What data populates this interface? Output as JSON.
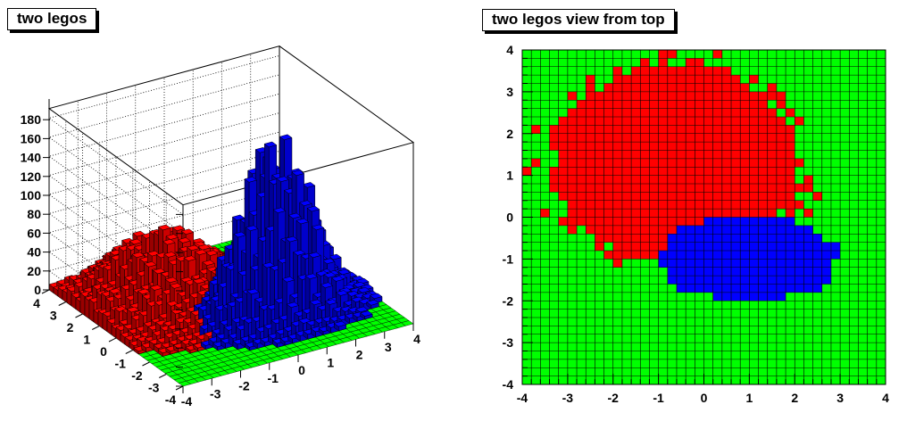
{
  "pads": [
    {
      "title": "two legos"
    },
    {
      "title": "two legos view from top"
    }
  ],
  "chart_data": [
    {
      "type": "bar",
      "subtype": "lego3d",
      "title": "two legos",
      "z_ticks": [
        "0",
        "20",
        "40",
        "60",
        "80",
        "100",
        "120",
        "140",
        "160",
        "180"
      ],
      "x_ticks": [
        "-4",
        "-3",
        "-2",
        "-1",
        "0",
        "1",
        "2",
        "3",
        "4"
      ],
      "y_ticks": [
        "-4",
        "-3",
        "-2",
        "-1",
        "0",
        "1",
        "2",
        "3",
        "4"
      ],
      "xlim": [
        -4,
        4
      ],
      "ylim": [
        -4,
        4
      ],
      "zlim": [
        0,
        190
      ],
      "series": [
        {
          "color": "#ff0000",
          "center": [
            -1.5,
            1.5
          ],
          "sigma": [
            1.5,
            1.5
          ],
          "peak": 60
        },
        {
          "color": "#0000ff",
          "center": [
            1.0,
            -1.0
          ],
          "sigma": [
            1.2,
            0.8
          ],
          "peak": 150
        }
      ],
      "empty_color": "#00ff00",
      "grid": true
    },
    {
      "type": "heatmap",
      "title": "two legos view from top",
      "x_ticks": [
        "-4",
        "-3",
        "-2",
        "-1",
        "0",
        "1",
        "2",
        "3",
        "4"
      ],
      "y_ticks": [
        "-4",
        "-3",
        "-2",
        "-1",
        "0",
        "1",
        "2",
        "3",
        "4"
      ],
      "xlim": [
        -4,
        4
      ],
      "ylim": [
        -4,
        4
      ],
      "nbins": 40,
      "colors": {
        "empty": "#00ff00",
        "red": "#ff0000",
        "blue": "#0000ff"
      }
    }
  ]
}
